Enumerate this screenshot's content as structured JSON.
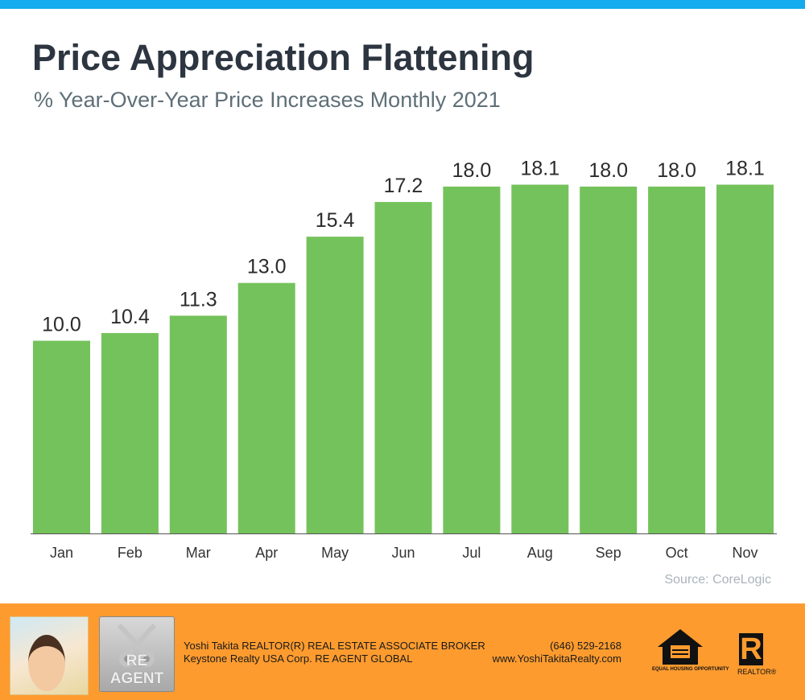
{
  "header": {
    "title": "Price Appreciation Flattening",
    "subtitle": "% Year-Over-Year Price Increases Monthly 2021"
  },
  "source": "Source: CoreLogic",
  "chart_data": {
    "type": "bar",
    "title": "Price Appreciation Flattening",
    "subtitle": "% Year-Over-Year Price Increases Monthly 2021",
    "categories": [
      "Jan",
      "Feb",
      "Mar",
      "Apr",
      "May",
      "Jun",
      "Jul",
      "Aug",
      "Sep",
      "Oct",
      "Nov"
    ],
    "values": [
      10.0,
      10.4,
      11.3,
      13.0,
      15.4,
      17.2,
      18.0,
      18.1,
      18.0,
      18.0,
      18.1
    ],
    "xlabel": "",
    "ylabel": "",
    "ylim": [
      0,
      20
    ],
    "grid": false,
    "bar_color": "#74c25b"
  },
  "footer": {
    "line1": "Yoshi Takita REALTOR(R) REAL ESTATE ASSOCIATE BROKER",
    "line2": "Keystone Realty USA Corp.  RE AGENT GLOBAL",
    "phone": "(646) 529-2168",
    "website": "www.YoshiTakitaRealty.com",
    "reagent_logo": "RE AGENT",
    "eho_text": "EQUAL HOUSING OPPORTUNITY",
    "realtor_text": "REALTOR®",
    "realtor_letter": "R"
  }
}
